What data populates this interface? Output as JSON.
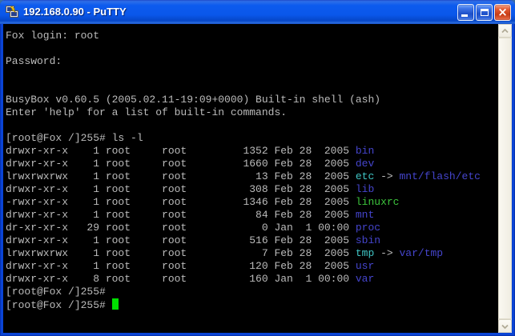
{
  "window": {
    "title": "192.168.0.90 - PuTTY",
    "close_glyph": "×"
  },
  "colors": {
    "background": "#000000",
    "foreground": "#BBBBBB",
    "directory": "#4545CD",
    "symlink": "#3FC4C4",
    "executable": "#3CC43C",
    "cursor": "#00E000",
    "titlebar_blue": "#0D5BEE",
    "border_blue": "#0A44D5",
    "close_red": "#C83C15"
  },
  "terminal": {
    "lines": [
      {
        "seg": [
          {
            "t": "Fox login: root"
          }
        ]
      },
      {
        "seg": []
      },
      {
        "seg": [
          {
            "t": "Password:"
          }
        ]
      },
      {
        "seg": []
      },
      {
        "seg": []
      },
      {
        "seg": [
          {
            "t": "BusyBox v0.60.5 (2005.02.11-19:09+0000) Built-in shell (ash)"
          }
        ]
      },
      {
        "seg": [
          {
            "t": "Enter 'help' for a list of built-in commands."
          }
        ]
      },
      {
        "seg": []
      },
      {
        "seg": [
          {
            "t": "[root@Fox /]255# ls -l"
          }
        ]
      },
      {
        "seg": [
          {
            "t": "drwxr-xr-x    1 root     root         1352 Feb 28  2005 "
          },
          {
            "t": "bin",
            "c": "directory"
          }
        ]
      },
      {
        "seg": [
          {
            "t": "drwxr-xr-x    1 root     root         1660 Feb 28  2005 "
          },
          {
            "t": "dev",
            "c": "directory"
          }
        ]
      },
      {
        "seg": [
          {
            "t": "lrwxrwxrwx    1 root     root           13 Feb 28  2005 "
          },
          {
            "t": "etc",
            "c": "symlink"
          },
          {
            "t": " -> "
          },
          {
            "t": "mnt/flash/etc",
            "c": "directory"
          }
        ]
      },
      {
        "seg": [
          {
            "t": "drwxr-xr-x    1 root     root          308 Feb 28  2005 "
          },
          {
            "t": "lib",
            "c": "directory"
          }
        ]
      },
      {
        "seg": [
          {
            "t": "-rwxr-xr-x    1 root     root         1346 Feb 28  2005 "
          },
          {
            "t": "linuxrc",
            "c": "executable"
          }
        ]
      },
      {
        "seg": [
          {
            "t": "drwxr-xr-x    1 root     root           84 Feb 28  2005 "
          },
          {
            "t": "mnt",
            "c": "directory"
          }
        ]
      },
      {
        "seg": [
          {
            "t": "dr-xr-xr-x   29 root     root            0 Jan  1 00:00 "
          },
          {
            "t": "proc",
            "c": "directory"
          }
        ]
      },
      {
        "seg": [
          {
            "t": "drwxr-xr-x    1 root     root          516 Feb 28  2005 "
          },
          {
            "t": "sbin",
            "c": "directory"
          }
        ]
      },
      {
        "seg": [
          {
            "t": "lrwxrwxrwx    1 root     root            7 Feb 28  2005 "
          },
          {
            "t": "tmp",
            "c": "symlink"
          },
          {
            "t": " -> "
          },
          {
            "t": "var/tmp",
            "c": "directory"
          }
        ]
      },
      {
        "seg": [
          {
            "t": "drwxr-xr-x    1 root     root          120 Feb 28  2005 "
          },
          {
            "t": "usr",
            "c": "directory"
          }
        ]
      },
      {
        "seg": [
          {
            "t": "drwxr-xr-x    8 root     root          160 Jan  1 00:00 "
          },
          {
            "t": "var",
            "c": "directory"
          }
        ]
      },
      {
        "seg": [
          {
            "t": "[root@Fox /]255#"
          }
        ]
      },
      {
        "seg": [
          {
            "t": "[root@Fox /]255# "
          }
        ],
        "cursor": true
      }
    ]
  }
}
